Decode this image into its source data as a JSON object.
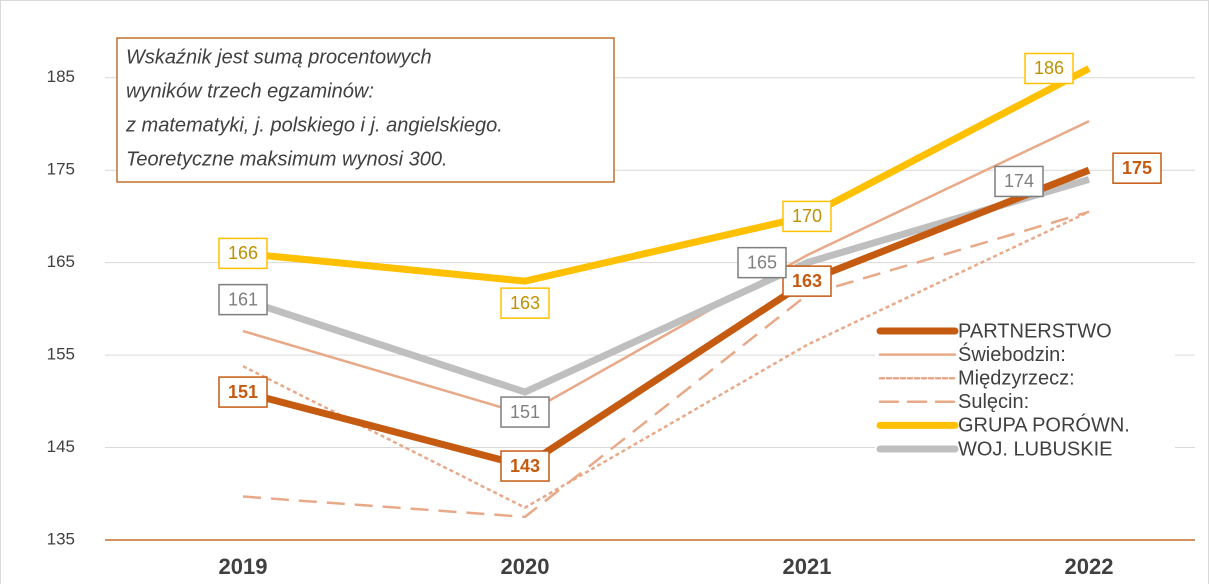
{
  "chart_data": {
    "type": "line",
    "annotation": [
      "Wskaźnik jest sumą procentowych",
      "wyników trzech egzaminów:",
      "z matematyki, j. polskiego i j. angielskiego.",
      "Teoretyczne maksimum wynosi 300."
    ],
    "categories": [
      "2019",
      "2020",
      "2021",
      "2022"
    ],
    "ylim": [
      135,
      188
    ],
    "yticks": [
      135,
      145,
      155,
      165,
      175,
      185
    ],
    "grid": true,
    "legend": "lower right",
    "series": [
      {
        "name": "PARTNERSTWO",
        "color": "#c55a11",
        "style": "solid",
        "data_labels": true,
        "values": [
          151,
          143,
          163,
          175
        ]
      },
      {
        "name": "Świebodzin:",
        "color": "#e8a989",
        "style": "solid",
        "values": [
          157.6,
          148.6,
          165.8,
          180.3
        ]
      },
      {
        "name": "Międzyrzecz:",
        "color": "#e8a989",
        "style": "dotted",
        "values": [
          153.8,
          138.5,
          156.1,
          170.5
        ]
      },
      {
        "name": "Sulęcin:",
        "color": "#e8a989",
        "style": "dashed",
        "values": [
          139.7,
          137.5,
          161.5,
          170.5
        ]
      },
      {
        "name": "GRUPA PORÓWN.",
        "color": "#ffc000",
        "style": "solid",
        "data_labels": true,
        "values": [
          166,
          163,
          170,
          186
        ]
      },
      {
        "name": "WOJ. LUBUSKIE",
        "color": "#bfbfbf",
        "style": "solid",
        "data_labels": true,
        "values": [
          161,
          151,
          165,
          174
        ]
      }
    ]
  }
}
